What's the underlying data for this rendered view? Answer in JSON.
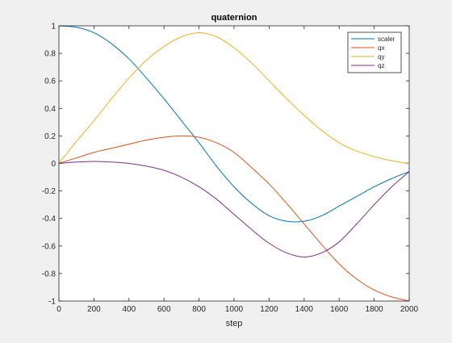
{
  "chart_data": {
    "type": "line",
    "title": "quaternion",
    "xlabel": "step",
    "ylabel": "",
    "xlim": [
      0,
      2000
    ],
    "ylim": [
      -1,
      1
    ],
    "xticks": [
      0,
      200,
      400,
      600,
      800,
      1000,
      1200,
      1400,
      1600,
      1800,
      2000
    ],
    "yticks": [
      -1,
      -0.8,
      -0.6,
      -0.4,
      -0.2,
      0,
      0.2,
      0.4,
      0.6,
      0.8,
      1
    ],
    "grid": false,
    "legend_position": "top-right",
    "x": [
      0,
      100,
      200,
      300,
      400,
      500,
      600,
      700,
      800,
      900,
      1000,
      1100,
      1200,
      1300,
      1400,
      1500,
      1600,
      1700,
      1800,
      1900,
      2000
    ],
    "series": [
      {
        "name": "scaler",
        "color": "#0072BD",
        "values": [
          1.0,
          0.99,
          0.95,
          0.87,
          0.76,
          0.62,
          0.47,
          0.31,
          0.15,
          -0.02,
          -0.17,
          -0.29,
          -0.38,
          -0.42,
          -0.42,
          -0.38,
          -0.31,
          -0.24,
          -0.17,
          -0.11,
          -0.06
        ]
      },
      {
        "name": "qx",
        "color": "#D95319",
        "values": [
          0.0,
          0.04,
          0.08,
          0.11,
          0.14,
          0.17,
          0.19,
          0.2,
          0.19,
          0.15,
          0.08,
          -0.03,
          -0.15,
          -0.29,
          -0.44,
          -0.59,
          -0.73,
          -0.84,
          -0.92,
          -0.97,
          -1.0
        ]
      },
      {
        "name": "qy",
        "color": "#EDB120",
        "values": [
          0.0,
          0.16,
          0.31,
          0.47,
          0.62,
          0.75,
          0.85,
          0.92,
          0.95,
          0.92,
          0.84,
          0.73,
          0.6,
          0.47,
          0.35,
          0.24,
          0.15,
          0.09,
          0.05,
          0.02,
          0.0
        ]
      },
      {
        "name": "qz",
        "color": "#7E2F8E",
        "values": [
          0.0,
          0.01,
          0.015,
          0.01,
          0.0,
          -0.02,
          -0.05,
          -0.1,
          -0.17,
          -0.26,
          -0.37,
          -0.48,
          -0.58,
          -0.65,
          -0.68,
          -0.65,
          -0.57,
          -0.44,
          -0.3,
          -0.17,
          -0.06
        ]
      }
    ]
  }
}
